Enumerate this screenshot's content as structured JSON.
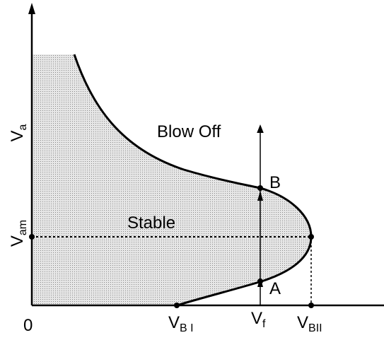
{
  "y_axis": {
    "label": {
      "main": "V",
      "sub": "a"
    },
    "marker": {
      "main": "V",
      "sub": "am"
    }
  },
  "x_axis": {
    "origin": "0",
    "markers": [
      {
        "main": "V",
        "sub": "B I"
      },
      {
        "main": "V",
        "sub": "f"
      },
      {
        "main": "V",
        "sub": "BII"
      }
    ]
  },
  "regions": {
    "outer": "Blow Off",
    "inner": "Stable"
  },
  "points": {
    "upper": "B",
    "lower": "A"
  }
}
